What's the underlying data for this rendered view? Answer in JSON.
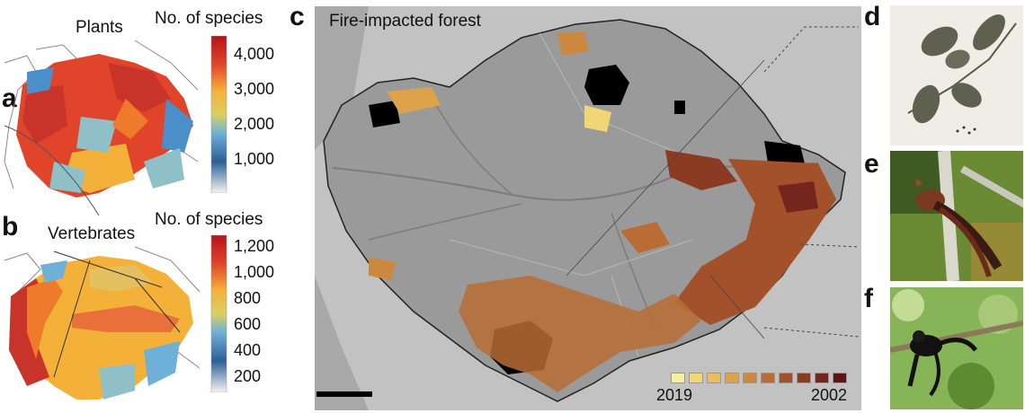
{
  "panels": {
    "a": {
      "letter": "a",
      "title": "Plants",
      "legend_title": "No. of species",
      "ticks": [
        "4,000",
        "3,000",
        "2,000",
        "1,000"
      ]
    },
    "b": {
      "letter": "b",
      "title": "Vertebrates",
      "legend_title": "No. of species",
      "ticks": [
        "1,200",
        "1,000",
        "800",
        "600",
        "400",
        "200"
      ]
    },
    "c": {
      "letter": "c",
      "title": "Fire-impacted forest",
      "legend_start": "2019",
      "legend_end": "2002",
      "legend_colors": [
        "#f4f0a0",
        "#f0d774",
        "#e8bf5c",
        "#dca34a",
        "#cd8840",
        "#b96c34",
        "#a2512a",
        "#8a3b22",
        "#74261c",
        "#5e1416"
      ]
    },
    "d": {
      "letter": "d"
    },
    "e": {
      "letter": "e"
    },
    "f": {
      "letter": "f"
    }
  },
  "colors": {
    "ramp": [
      "#c9342a",
      "#e0442a",
      "#ef7a2c",
      "#f4b13a",
      "#d9d060",
      "#8fc0c8",
      "#4a8fc9",
      "#2d5f95",
      "#b9c4d2",
      "#f2f2f2"
    ],
    "map_background": "#c2c2c2",
    "amazon_fill": "#9a9a9a",
    "fire_black": "#000000"
  },
  "icons": [
    "colorbar-plants",
    "colorbar-vertebrates",
    "scale-bar",
    "leaf-specimen-photo",
    "hoatzin-bird-photo",
    "spider-monkey-photo"
  ]
}
